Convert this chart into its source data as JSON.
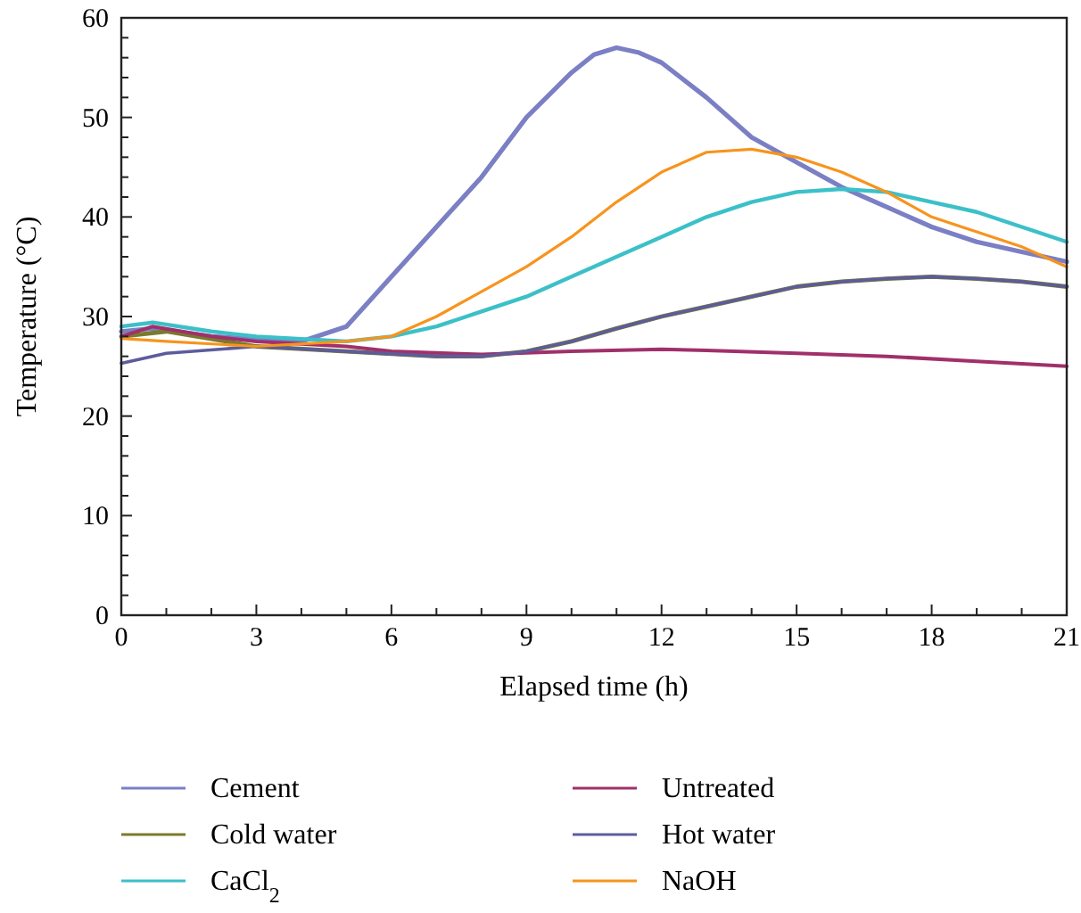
{
  "chart_data": {
    "type": "line",
    "xlabel": "Elapsed time (h)",
    "ylabel": "Temperature (°C)",
    "xlim": [
      0,
      21
    ],
    "ylim": [
      0,
      60
    ],
    "xticks": [
      0,
      {
        "value": 1,
        "label": null
      },
      {
        "value": 2,
        "label": null
      },
      3,
      {
        "value": 4,
        "label": null
      },
      {
        "value": 5,
        "label": null
      },
      6,
      {
        "value": 7,
        "label": null
      },
      {
        "value": 8,
        "label": null
      },
      9,
      {
        "value": 10,
        "label": null
      },
      {
        "value": 11,
        "label": null
      },
      12,
      {
        "value": 13,
        "label": null
      },
      {
        "value": 14,
        "label": null
      },
      15,
      {
        "value": 16,
        "label": null
      },
      {
        "value": 17,
        "label": null
      },
      18,
      {
        "value": 19,
        "label": null
      },
      {
        "value": 20,
        "label": null
      },
      21
    ],
    "yticks": [
      0,
      {
        "value": 2,
        "label": null
      },
      {
        "value": 4,
        "label": null
      },
      {
        "value": 6,
        "label": null
      },
      {
        "value": 8,
        "label": null
      },
      10,
      {
        "value": 12,
        "label": null
      },
      {
        "value": 14,
        "label": null
      },
      {
        "value": 16,
        "label": null
      },
      {
        "value": 18,
        "label": null
      },
      20,
      {
        "value": 22,
        "label": null
      },
      {
        "value": 24,
        "label": null
      },
      {
        "value": 26,
        "label": null
      },
      {
        "value": 28,
        "label": null
      },
      30,
      {
        "value": 32,
        "label": null
      },
      {
        "value": 34,
        "label": null
      },
      {
        "value": 36,
        "label": null
      },
      {
        "value": 38,
        "label": null
      },
      40,
      {
        "value": 42,
        "label": null
      },
      {
        "value": 44,
        "label": null
      },
      {
        "value": 46,
        "label": null
      },
      {
        "value": 48,
        "label": null
      },
      50,
      {
        "value": 52,
        "label": null
      },
      {
        "value": 54,
        "label": null
      },
      {
        "value": 56,
        "label": null
      },
      {
        "value": 58,
        "label": null
      },
      60
    ],
    "grid": false,
    "legend": "bottom",
    "line_style": "solid",
    "series": [
      {
        "name": "Cement",
        "color": "#7b7fc4",
        "x": [
          0,
          0.7,
          2,
          4,
          5,
          6,
          7,
          8,
          9,
          10,
          10.5,
          11,
          11.5,
          12,
          13,
          14,
          15,
          16,
          17,
          18,
          19,
          20,
          21
        ],
        "values": [
          28.5,
          28.8,
          28,
          27.5,
          29,
          34,
          39,
          44,
          50,
          54.5,
          56.3,
          57,
          56.5,
          55.5,
          52,
          48,
          45.5,
          43,
          41,
          39,
          37.5,
          36.5,
          35.5
        ]
      },
      {
        "name": "Cold water",
        "color": "#7a7a2e",
        "x": [
          0,
          1,
          3,
          5,
          7,
          8,
          9,
          10,
          11,
          12,
          13,
          14,
          15,
          16,
          17,
          18,
          19,
          20,
          21
        ],
        "values": [
          28,
          28.5,
          27,
          26.5,
          26,
          26,
          26.5,
          27.5,
          28.8,
          30,
          31,
          32,
          33,
          33.5,
          33.8,
          34,
          33.8,
          33.5,
          33
        ]
      },
      {
        "name": "CaCl$_{2}$",
        "color": "#3cc0c8",
        "x": [
          0,
          0.7,
          2,
          3,
          5,
          6,
          7,
          8,
          9,
          10,
          11,
          12,
          13,
          14,
          15,
          16,
          17,
          18,
          19,
          20,
          21
        ],
        "values": [
          29,
          29.4,
          28.5,
          28,
          27.5,
          28,
          29,
          30.5,
          32,
          34,
          36,
          38,
          40,
          41.5,
          42.5,
          42.8,
          42.5,
          41.5,
          40.5,
          39,
          37.5
        ]
      },
      {
        "name": "Untreated",
        "color": "#a0306a",
        "x": [
          0,
          0.7,
          2,
          3,
          5,
          6,
          8,
          10,
          12,
          13,
          15,
          17,
          19,
          21
        ],
        "values": [
          28,
          29,
          28,
          27.5,
          27,
          26.5,
          26.2,
          26.5,
          26.7,
          26.6,
          26.3,
          26,
          25.5,
          25
        ]
      },
      {
        "name": "Hot water",
        "color": "#5c5c9c",
        "x": [
          0,
          1,
          3,
          5,
          7,
          8,
          9,
          10,
          11,
          12,
          13,
          14,
          15,
          16,
          17,
          18,
          19,
          20,
          21
        ],
        "values": [
          25.3,
          26.3,
          27,
          26.5,
          26,
          26,
          26.5,
          27.5,
          28.8,
          30,
          31,
          32,
          33,
          33.5,
          33.8,
          34,
          33.8,
          33.5,
          33
        ]
      },
      {
        "name": "NaOH",
        "color": "#f7941d",
        "x": [
          0,
          1,
          3,
          5,
          6,
          7,
          8,
          9,
          10,
          11,
          12,
          13,
          14,
          15,
          16,
          17,
          18,
          19,
          20,
          21
        ],
        "values": [
          27.8,
          27.5,
          27,
          27.5,
          28,
          30,
          32.5,
          35,
          38,
          41.5,
          44.5,
          46.5,
          46.8,
          46,
          44.5,
          42.5,
          40,
          38.5,
          37,
          35
        ]
      }
    ]
  }
}
